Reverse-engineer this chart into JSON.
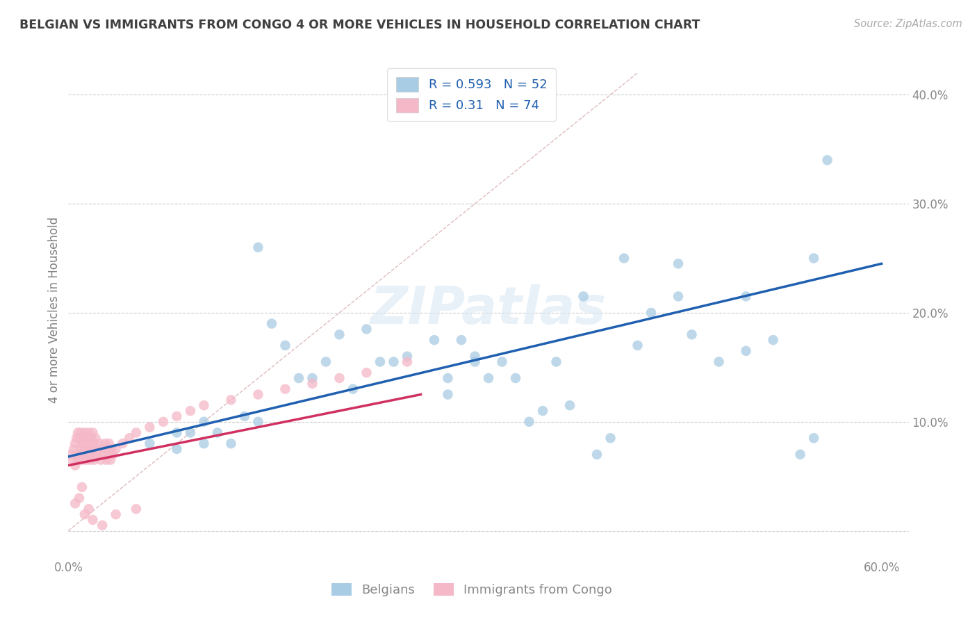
{
  "title": "BELGIAN VS IMMIGRANTS FROM CONGO 4 OR MORE VEHICLES IN HOUSEHOLD CORRELATION CHART",
  "source": "Source: ZipAtlas.com",
  "ylabel": "4 or more Vehicles in Household",
  "watermark": "ZIPatlas",
  "xlim": [
    0.0,
    0.62
  ],
  "ylim": [
    -0.025,
    0.43
  ],
  "x_ticks": [
    0.0,
    0.1,
    0.2,
    0.3,
    0.4,
    0.5,
    0.6
  ],
  "y_ticks": [
    0.0,
    0.1,
    0.2,
    0.3,
    0.4
  ],
  "belgian_color": "#a8cce4",
  "congo_color": "#f5b8c8",
  "belgian_line_color": "#2060b0",
  "congo_line_color": "#d03060",
  "diag_color": "#ddbbbb",
  "belgian_R": 0.593,
  "belgian_N": 52,
  "congo_R": 0.31,
  "congo_N": 74,
  "legend_labels": [
    "Belgians",
    "Immigrants from Congo"
  ],
  "belgian_scatter_x": [
    0.06,
    0.08,
    0.08,
    0.09,
    0.1,
    0.1,
    0.11,
    0.12,
    0.13,
    0.14,
    0.15,
    0.16,
    0.17,
    0.18,
    0.19,
    0.2,
    0.21,
    0.22,
    0.23,
    0.24,
    0.25,
    0.27,
    0.28,
    0.28,
    0.29,
    0.3,
    0.3,
    0.31,
    0.32,
    0.33,
    0.34,
    0.35,
    0.36,
    0.37,
    0.38,
    0.39,
    0.4,
    0.41,
    0.42,
    0.43,
    0.45,
    0.46,
    0.48,
    0.5,
    0.52,
    0.54,
    0.55,
    0.56,
    0.14,
    0.45,
    0.5,
    0.55
  ],
  "belgian_scatter_y": [
    0.08,
    0.075,
    0.09,
    0.09,
    0.08,
    0.1,
    0.09,
    0.08,
    0.105,
    0.1,
    0.19,
    0.17,
    0.14,
    0.14,
    0.155,
    0.18,
    0.13,
    0.185,
    0.155,
    0.155,
    0.16,
    0.175,
    0.125,
    0.14,
    0.175,
    0.16,
    0.155,
    0.14,
    0.155,
    0.14,
    0.1,
    0.11,
    0.155,
    0.115,
    0.215,
    0.07,
    0.085,
    0.25,
    0.17,
    0.2,
    0.215,
    0.18,
    0.155,
    0.165,
    0.175,
    0.07,
    0.085,
    0.34,
    0.26,
    0.245,
    0.215,
    0.25
  ],
  "congo_scatter_x": [
    0.002,
    0.003,
    0.004,
    0.005,
    0.005,
    0.006,
    0.006,
    0.007,
    0.007,
    0.008,
    0.008,
    0.009,
    0.009,
    0.01,
    0.01,
    0.011,
    0.011,
    0.012,
    0.012,
    0.013,
    0.013,
    0.014,
    0.014,
    0.015,
    0.015,
    0.016,
    0.016,
    0.017,
    0.017,
    0.018,
    0.018,
    0.019,
    0.019,
    0.02,
    0.02,
    0.021,
    0.022,
    0.023,
    0.024,
    0.025,
    0.026,
    0.027,
    0.028,
    0.029,
    0.03,
    0.03,
    0.031,
    0.032,
    0.033,
    0.035,
    0.04,
    0.045,
    0.05,
    0.06,
    0.07,
    0.08,
    0.09,
    0.1,
    0.12,
    0.14,
    0.16,
    0.18,
    0.2,
    0.22,
    0.25,
    0.01,
    0.015,
    0.005,
    0.008,
    0.012,
    0.018,
    0.025,
    0.035,
    0.05
  ],
  "congo_scatter_y": [
    0.07,
    0.065,
    0.075,
    0.08,
    0.06,
    0.085,
    0.07,
    0.09,
    0.065,
    0.085,
    0.07,
    0.075,
    0.09,
    0.08,
    0.065,
    0.085,
    0.07,
    0.075,
    0.09,
    0.08,
    0.065,
    0.085,
    0.07,
    0.075,
    0.09,
    0.08,
    0.065,
    0.085,
    0.07,
    0.075,
    0.09,
    0.08,
    0.065,
    0.085,
    0.07,
    0.075,
    0.07,
    0.08,
    0.065,
    0.075,
    0.07,
    0.08,
    0.065,
    0.075,
    0.07,
    0.08,
    0.065,
    0.075,
    0.07,
    0.075,
    0.08,
    0.085,
    0.09,
    0.095,
    0.1,
    0.105,
    0.11,
    0.115,
    0.12,
    0.125,
    0.13,
    0.135,
    0.14,
    0.145,
    0.155,
    0.04,
    0.02,
    0.025,
    0.03,
    0.015,
    0.01,
    0.005,
    0.015,
    0.02
  ],
  "belgian_line_x": [
    0.0,
    0.6
  ],
  "belgian_line_y": [
    0.068,
    0.245
  ],
  "congo_line_x": [
    0.0,
    0.26
  ],
  "congo_line_y": [
    0.06,
    0.125
  ],
  "diag_line_x": [
    0.0,
    0.42
  ],
  "diag_line_y": [
    0.0,
    0.42
  ],
  "background_color": "#ffffff",
  "grid_color": "#cccccc",
  "title_color": "#404040",
  "axis_label_color": "#808080"
}
